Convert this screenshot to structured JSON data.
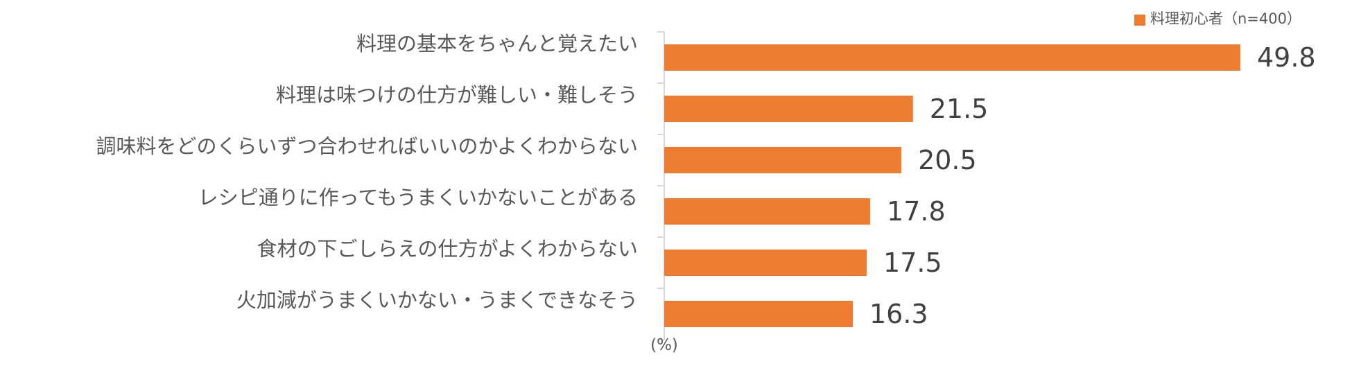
{
  "chart_data": {
    "type": "bar",
    "orientation": "horizontal",
    "categories": [
      "料理の基本をちゃんと覚えたい",
      "料理は味つけの仕方が難しい・難しそう",
      "調味料をどのくらいずつ合わせればいいのかよくわからない",
      "レシピ通りに作ってもうまくいかないことがある",
      "食材の下ごしらえの仕方がよくわからない",
      "火加減がうまくいかない・うまくできなそう"
    ],
    "series": [
      {
        "name": "料理初心者（n=400）",
        "values": [
          49.8,
          21.5,
          20.5,
          17.8,
          17.5,
          16.3
        ],
        "color": "#ED7D31"
      }
    ],
    "value_labels": [
      "49.8",
      "21.5",
      "20.5",
      "17.8",
      "17.5",
      "16.3"
    ],
    "unit_label": "(%)",
    "xlim": [
      0,
      60
    ],
    "grid": false,
    "legend_position": "top-right",
    "axis_color": "#D9D9D9"
  }
}
